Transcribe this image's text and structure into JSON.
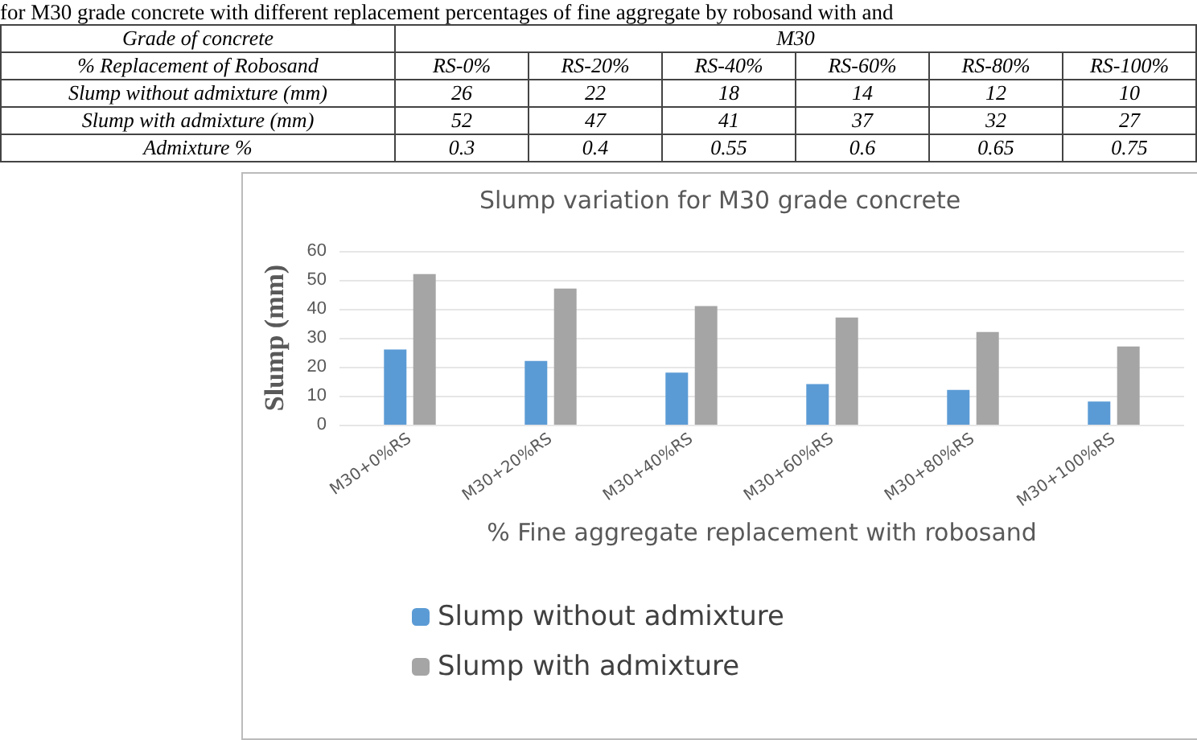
{
  "chart_data": [
    {
      "type": "other",
      "title": "for M30 grade concrete with different replacement percentages of fine aggregate by robosand with and",
      "annotations": [
        "Grade of concrete",
        "M30",
        "% Replacement of Robosand"
      ],
      "categories": [
        "RS-0%",
        "RS-20%",
        "RS-40%",
        "RS-60%",
        "RS-80%",
        "RS-100%"
      ],
      "data_labels": true,
      "series": [
        {
          "name": "Slump without  admixture (mm)",
          "values": [
            26,
            22,
            18,
            14,
            12,
            10
          ]
        },
        {
          "name": "Slump with admixture (mm)",
          "values": [
            52,
            47,
            41,
            37,
            32,
            27
          ]
        },
        {
          "name": "Admixture %",
          "values": [
            0.3,
            0.4,
            0.55,
            0.6,
            0.65,
            0.75
          ]
        }
      ]
    },
    {
      "type": "bar",
      "title": "Slump variation for M30 grade concrete",
      "xlabel": "% Fine aggregate replacement with robosand",
      "ylabel": "Slump (mm)",
      "categories": [
        "M30+0%RS",
        "M30+20%RS",
        "M30+40%RS",
        "M30+60%RS",
        "M30+80%RS",
        "M30+100%RS"
      ],
      "series": [
        {
          "name": "Slump without admixture",
          "color": "#5b9bd5",
          "values": [
            26,
            22,
            18,
            14,
            12,
            8
          ]
        },
        {
          "name": "Slump with admixture",
          "color": "#a5a5a5",
          "values": [
            52,
            47,
            41,
            37,
            32,
            27
          ]
        }
      ],
      "ylim": [
        0,
        60
      ],
      "yticks": [
        0,
        10,
        20,
        30,
        40,
        50,
        60
      ],
      "grid": "y",
      "legend": "bottom"
    }
  ]
}
